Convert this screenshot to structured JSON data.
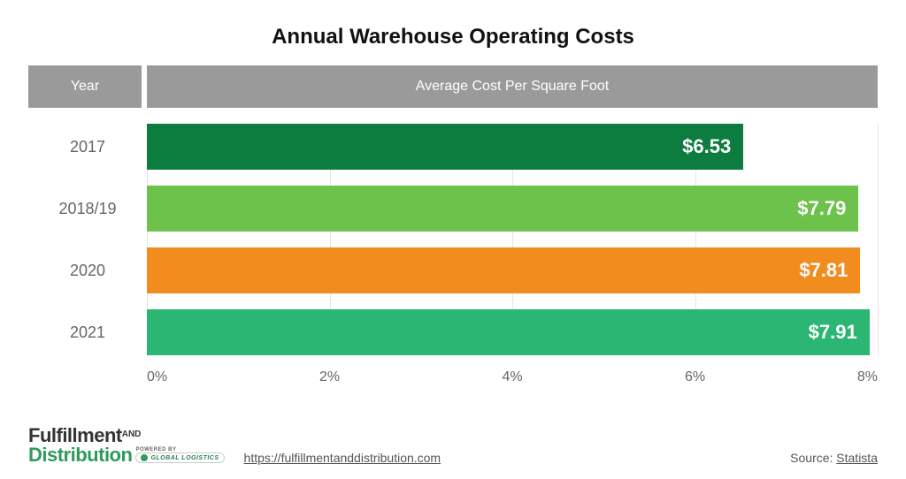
{
  "title": "Annual Warehouse Operating Costs",
  "header": {
    "year": "Year",
    "cost": "Average Cost Per Square Foot"
  },
  "header_bg": "#9a9a9a",
  "chart": {
    "type": "bar-horizontal",
    "xmin": 0,
    "xmax": 8,
    "ticks": [
      {
        "val": 0,
        "label": "0%"
      },
      {
        "val": 2,
        "label": "2%"
      },
      {
        "val": 4,
        "label": "4%"
      },
      {
        "val": 6,
        "label": "6%"
      },
      {
        "val": 8,
        "label": "8%"
      }
    ],
    "grid_color": "#e5e5e5",
    "label_color": "#666666",
    "label_fontsize": 18,
    "value_fontsize": 22,
    "bars": [
      {
        "year": "2017",
        "value": 6.53,
        "display": "$6.53",
        "color": "#0d7c3f"
      },
      {
        "year": "2018/19",
        "value": 7.79,
        "display": "$7.79",
        "color": "#6cc24a"
      },
      {
        "year": "2020",
        "value": 7.81,
        "display": "$7.81",
        "color": "#f28c1e"
      },
      {
        "year": "2021",
        "value": 7.91,
        "display": "$7.91",
        "color": "#2bb673"
      }
    ]
  },
  "footer": {
    "logo_line1a": "Fulfillment",
    "logo_line1b": "AND",
    "logo_line2": "Distribution",
    "logo_line2_color": "#2e9b5b",
    "powered_label": "POWERED BY",
    "powered_brand": "GLOBAL LOGISTICS",
    "url": "https://fulfillmentanddistribution.com",
    "source_label": "Source: ",
    "source_name": "Statista"
  }
}
